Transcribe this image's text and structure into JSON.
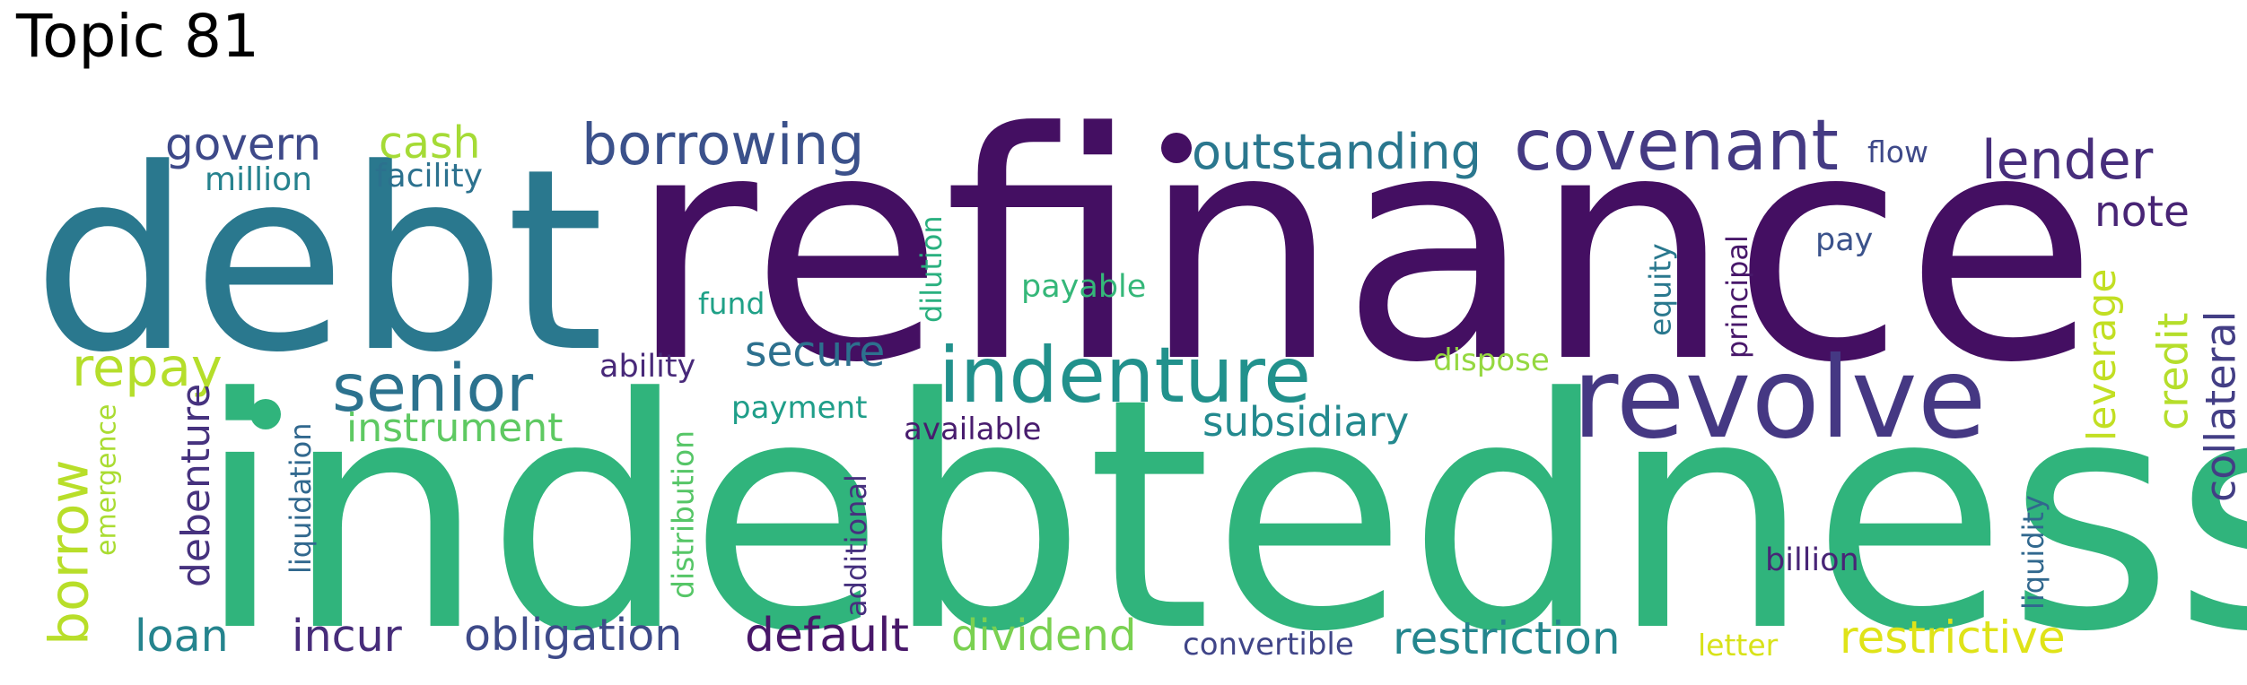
{
  "title": "Topic 81",
  "words": [
    {
      "text": "refinance",
      "color": "#440f62",
      "rotated": false
    },
    {
      "text": "indebtedness",
      "color": "#30b47c",
      "rotated": false
    },
    {
      "text": "debt",
      "color": "#2a788e",
      "rotated": false
    },
    {
      "text": "revolve",
      "color": "#453883",
      "rotated": false
    },
    {
      "text": "indenture",
      "color": "#21918c",
      "rotated": false
    },
    {
      "text": "covenant",
      "color": "#443a83",
      "rotated": false
    },
    {
      "text": "senior",
      "color": "#2c728e",
      "rotated": false
    },
    {
      "text": "borrowing",
      "color": "#3b518b",
      "rotated": false
    },
    {
      "text": "lender",
      "color": "#472e7c",
      "rotated": false
    },
    {
      "text": "outstanding",
      "color": "#2a778e",
      "rotated": false
    },
    {
      "text": "restriction",
      "color": "#24868e",
      "rotated": false
    },
    {
      "text": "restrictive",
      "color": "#dfe318",
      "rotated": false
    },
    {
      "text": "default",
      "color": "#481769",
      "rotated": false
    },
    {
      "text": "dividend",
      "color": "#7ad151",
      "rotated": false
    },
    {
      "text": "obligation",
      "color": "#3e4a89",
      "rotated": false
    },
    {
      "text": "incur",
      "color": "#472c7a",
      "rotated": false
    },
    {
      "text": "loan",
      "color": "#25848e",
      "rotated": false
    },
    {
      "text": "repay",
      "color": "#b5de2b",
      "rotated": false
    },
    {
      "text": "secure",
      "color": "#2d708e",
      "rotated": false
    },
    {
      "text": "subsidiary",
      "color": "#23898e",
      "rotated": false
    },
    {
      "text": "instrument",
      "color": "#5ec962",
      "rotated": false
    },
    {
      "text": "govern",
      "color": "#3e4989",
      "rotated": false
    },
    {
      "text": "cash",
      "color": "#a5db36",
      "rotated": false
    },
    {
      "text": "note",
      "color": "#482475",
      "rotated": false
    },
    {
      "text": "borrow",
      "color": "#b8de29",
      "rotated": true
    },
    {
      "text": "debenture",
      "color": "#46327e",
      "rotated": true
    },
    {
      "text": "collateral",
      "color": "#433e85",
      "rotated": true
    },
    {
      "text": "credit",
      "color": "#b5de2b",
      "rotated": true
    },
    {
      "text": "leverage",
      "color": "#c2df23",
      "rotated": true
    },
    {
      "text": "million",
      "color": "#26828e",
      "rotated": false
    },
    {
      "text": "facility",
      "color": "#2c718e",
      "rotated": false
    },
    {
      "text": "flow",
      "color": "#3e4989",
      "rotated": false
    },
    {
      "text": "pay",
      "color": "#3b528b",
      "rotated": false
    },
    {
      "text": "fund",
      "color": "#1fa187",
      "rotated": false
    },
    {
      "text": "payable",
      "color": "#35b779",
      "rotated": false
    },
    {
      "text": "ability",
      "color": "#482979",
      "rotated": false
    },
    {
      "text": "payment",
      "color": "#1f9e89",
      "rotated": false
    },
    {
      "text": "available",
      "color": "#481c6e",
      "rotated": false
    },
    {
      "text": "dispose",
      "color": "#95d840",
      "rotated": false
    },
    {
      "text": "billion",
      "color": "#482576",
      "rotated": false
    },
    {
      "text": "convertible",
      "color": "#404588",
      "rotated": false
    },
    {
      "text": "letter",
      "color": "#d8e219",
      "rotated": false
    },
    {
      "text": "dilution",
      "color": "#2ab07f",
      "rotated": true
    },
    {
      "text": "equity",
      "color": "#2a788e",
      "rotated": true
    },
    {
      "text": "principal",
      "color": "#48186a",
      "rotated": true
    },
    {
      "text": "liquidity",
      "color": "#31688e",
      "rotated": true
    },
    {
      "text": "liquidation",
      "color": "#31688e",
      "rotated": true
    },
    {
      "text": "emergence",
      "color": "#aadc32",
      "rotated": true
    },
    {
      "text": "distribution",
      "color": "#56c667",
      "rotated": true
    },
    {
      "text": "additional",
      "color": "#46307e",
      "rotated": true
    }
  ]
}
